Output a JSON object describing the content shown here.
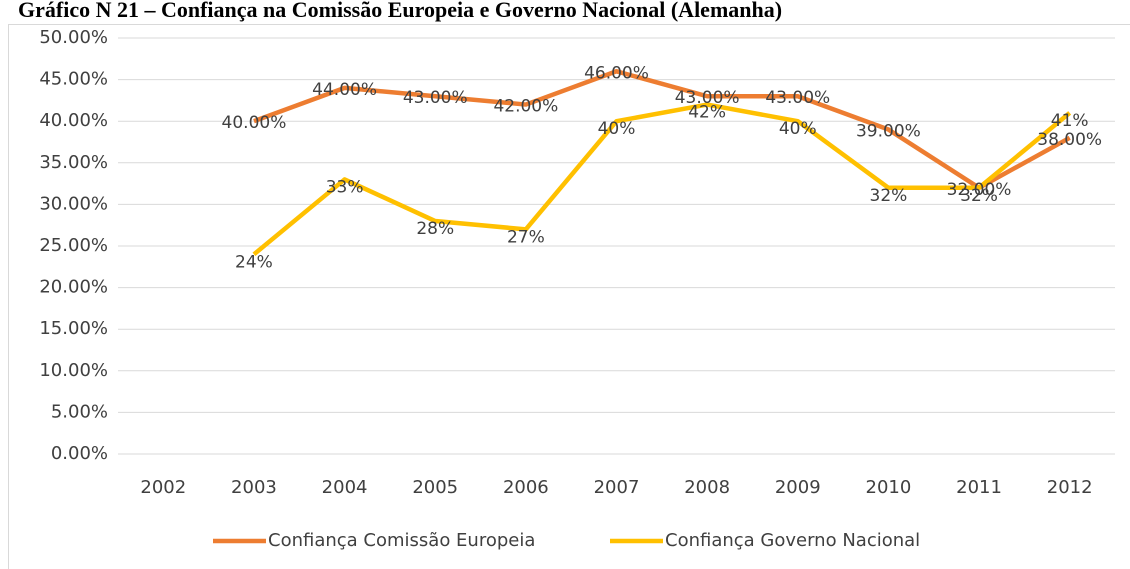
{
  "chart_data": {
    "type": "line",
    "title": "Gráfico N 21 – Confiança na Comissão Europeia e Governo Nacional (Alemanha)",
    "categories": [
      "2002",
      "2003",
      "2004",
      "2005",
      "2006",
      "2007",
      "2008",
      "2009",
      "2010",
      "2011",
      "2012"
    ],
    "series": [
      {
        "name": "Confiança Comissão Europeia",
        "color": "#ED7D31",
        "values": [
          null,
          40,
          44,
          43,
          42,
          46,
          43,
          43,
          39,
          32,
          38
        ],
        "value_labels": [
          null,
          "40.00%",
          "44.00%",
          "43.00%",
          "42.00%",
          "46.00%",
          "43.00%",
          "43.00%",
          "39.00%",
          "32.00%",
          "38.00%"
        ]
      },
      {
        "name": "Confiança Governo Nacional",
        "color": "#FFC000",
        "values": [
          null,
          24,
          33,
          28,
          27,
          40,
          42,
          40,
          32,
          32,
          41
        ],
        "value_labels": [
          null,
          "24%",
          "33%",
          "28%",
          "27%",
          "40%",
          "42%",
          "40%",
          "32%",
          "32%",
          "41%"
        ]
      }
    ],
    "ylim": [
      0,
      50
    ],
    "yticks": [
      {
        "value": 0,
        "label": "0.00%"
      },
      {
        "value": 5,
        "label": "5.00%"
      },
      {
        "value": 10,
        "label": "10.00%"
      },
      {
        "value": 15,
        "label": "15.00%"
      },
      {
        "value": 20,
        "label": "20.00%"
      },
      {
        "value": 25,
        "label": "25.00%"
      },
      {
        "value": 30,
        "label": "30.00%"
      },
      {
        "value": 35,
        "label": "35.00%"
      },
      {
        "value": 40,
        "label": "40.00%"
      },
      {
        "value": 45,
        "label": "45.00%"
      },
      {
        "value": 50,
        "label": "50.00%"
      }
    ],
    "grid": true,
    "legend": "bottom"
  }
}
